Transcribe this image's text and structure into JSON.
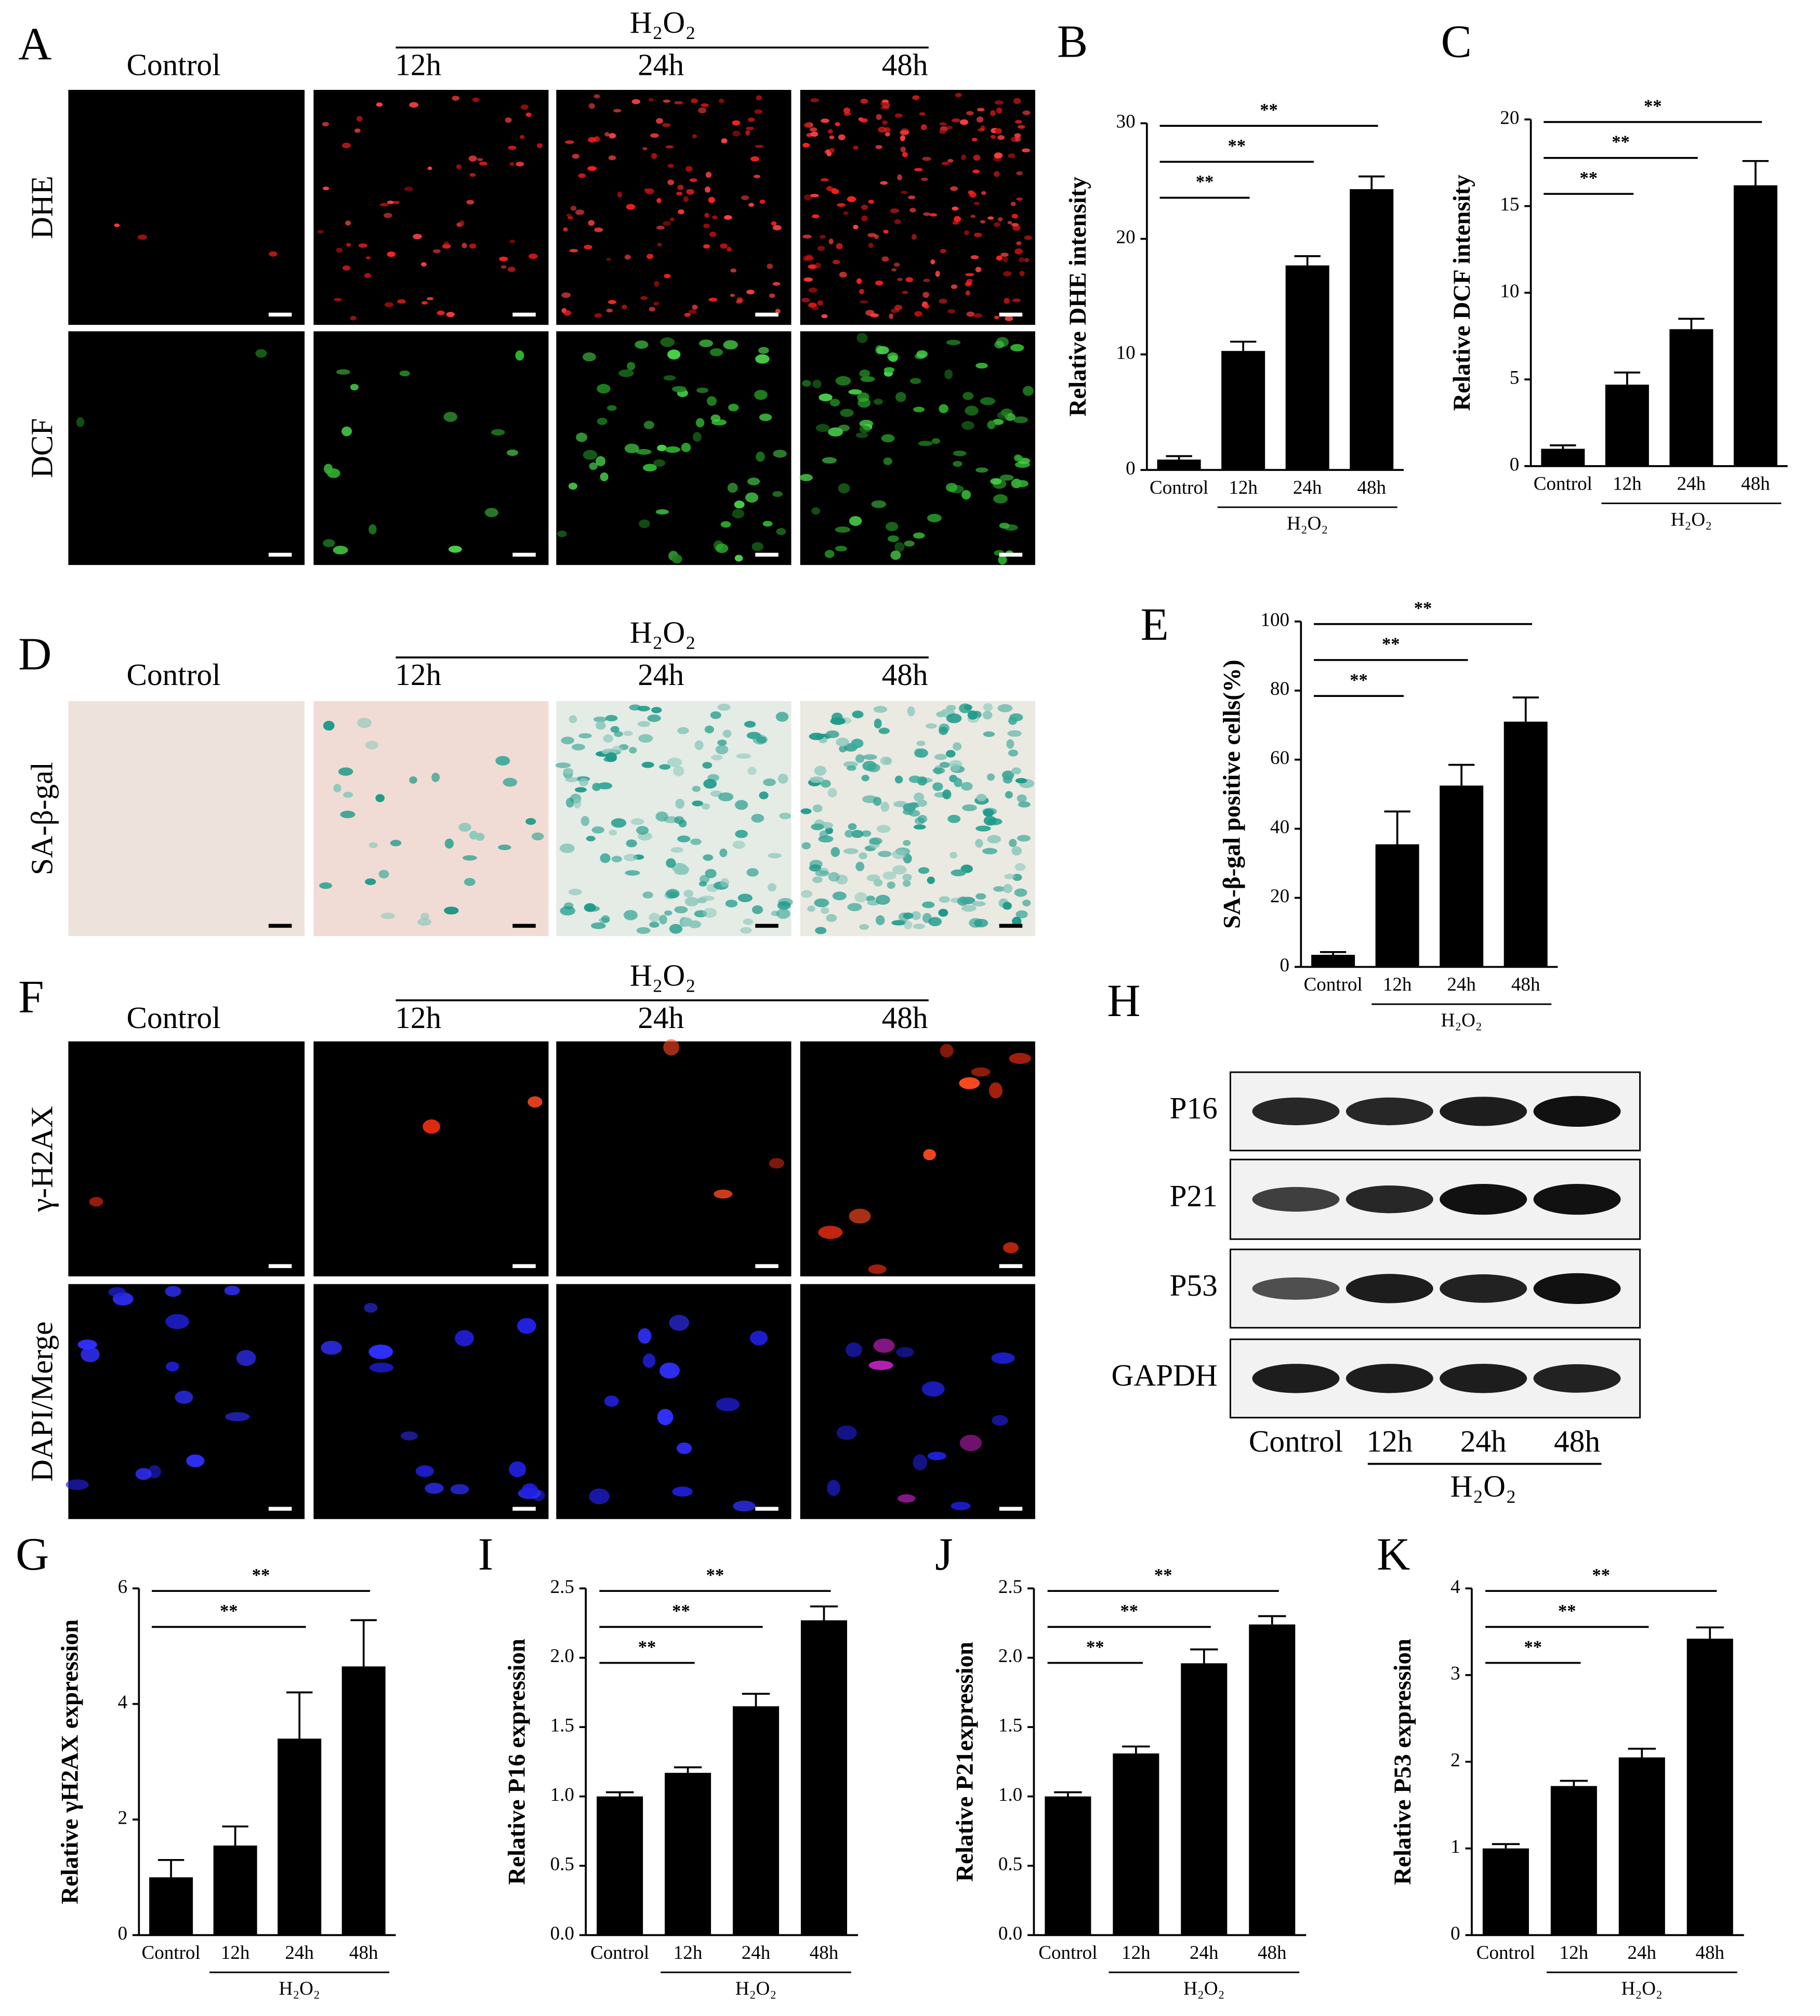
{
  "panels": {
    "A": {
      "letter": "A",
      "group": "H₂O₂",
      "columns": [
        "Control",
        "12h",
        "24h",
        "48h"
      ],
      "rows": [
        "DHE",
        "DCF"
      ]
    },
    "D": {
      "letter": "D",
      "group": "H₂O₂",
      "columns": [
        "Control",
        "12h",
        "24h",
        "48h"
      ],
      "rows": [
        "SA-β-gal"
      ]
    },
    "F": {
      "letter": "F",
      "group": "H₂O₂",
      "columns": [
        "Control",
        "12h",
        "24h",
        "48h"
      ],
      "rows": [
        "γ-H2AX",
        "DAPI/Merge"
      ]
    },
    "H": {
      "letter": "H",
      "group": "H₂O₂",
      "columns": [
        "Control",
        "12h",
        "24h",
        "48h"
      ],
      "rows": [
        "P16",
        "P21",
        "P53",
        "GAPDH"
      ]
    }
  },
  "chart_data": [
    {
      "panel": "B",
      "type": "bar",
      "ylabel": "Relative DHE intensity",
      "color": "#000000",
      "categories": [
        "Control",
        "12h",
        "24h",
        "48h"
      ],
      "group": {
        "label": "H₂O₂",
        "members": [
          "12h",
          "24h",
          "48h"
        ]
      },
      "values": [
        0.9,
        10.3,
        17.7,
        24.3
      ],
      "errors": [
        0.3,
        0.8,
        0.8,
        1.1
      ],
      "ylim": [
        0,
        30
      ],
      "yticks": [
        0,
        10,
        20,
        30
      ],
      "comparisons": [
        {
          "groups": [
            "Control",
            "12h"
          ],
          "label": "**"
        },
        {
          "groups": [
            "Control",
            "24h"
          ],
          "label": "**"
        },
        {
          "groups": [
            "Control",
            "48h"
          ],
          "label": "**"
        }
      ]
    },
    {
      "panel": "C",
      "type": "bar",
      "ylabel": "Relative DCF intensity",
      "color": "#000000",
      "categories": [
        "Control",
        "12h",
        "24h",
        "48h"
      ],
      "group": {
        "label": "H₂O₂",
        "members": [
          "12h",
          "24h",
          "48h"
        ]
      },
      "values": [
        1.0,
        4.7,
        7.9,
        16.2
      ],
      "errors": [
        0.2,
        0.7,
        0.6,
        1.4
      ],
      "ylim": [
        0,
        20
      ],
      "yticks": [
        0,
        5,
        10,
        15,
        20
      ],
      "comparisons": [
        {
          "groups": [
            "Control",
            "12h"
          ],
          "label": "**"
        },
        {
          "groups": [
            "Control",
            "24h"
          ],
          "label": "**"
        },
        {
          "groups": [
            "Control",
            "48h"
          ],
          "label": "**"
        }
      ]
    },
    {
      "panel": "E",
      "type": "bar",
      "ylabel": "SA-β-gal positive cells(%)",
      "color": "#000000",
      "categories": [
        "Control",
        "12h",
        "24h",
        "48h"
      ],
      "group": {
        "label": "H₂O₂",
        "members": [
          "12h",
          "24h",
          "48h"
        ]
      },
      "values": [
        3.5,
        35.5,
        52.5,
        71
      ],
      "errors": [
        0.8,
        9.5,
        6,
        7
      ],
      "ylim": [
        0,
        100
      ],
      "yticks": [
        0,
        20,
        40,
        60,
        80,
        100
      ],
      "comparisons": [
        {
          "groups": [
            "Control",
            "12h"
          ],
          "label": "**"
        },
        {
          "groups": [
            "Control",
            "24h"
          ],
          "label": "**"
        },
        {
          "groups": [
            "Control",
            "48h"
          ],
          "label": "**"
        }
      ]
    },
    {
      "panel": "G",
      "type": "bar",
      "ylabel": "Relative γH2AX expression",
      "color": "#000000",
      "categories": [
        "Control",
        "12h",
        "24h",
        "48h"
      ],
      "group": {
        "label": "H₂O₂",
        "members": [
          "12h",
          "24h",
          "48h"
        ]
      },
      "values": [
        1.0,
        1.55,
        3.4,
        4.65
      ],
      "errors": [
        0.3,
        0.33,
        0.8,
        0.8
      ],
      "ylim": [
        0,
        6
      ],
      "yticks": [
        0,
        2,
        4,
        6
      ],
      "comparisons": [
        {
          "groups": [
            "Control",
            "24h"
          ],
          "label": "**"
        },
        {
          "groups": [
            "Control",
            "48h"
          ],
          "label": "**"
        }
      ]
    },
    {
      "panel": "I",
      "type": "bar",
      "ylabel": "Relative P16 expression",
      "color": "#000000",
      "categories": [
        "Control",
        "12h",
        "24h",
        "48h"
      ],
      "group": {
        "label": "H₂O₂",
        "members": [
          "12h",
          "24h",
          "48h"
        ]
      },
      "values": [
        1.0,
        1.17,
        1.65,
        2.27
      ],
      "errors": [
        0.03,
        0.04,
        0.09,
        0.1
      ],
      "ylim": [
        0,
        2.5
      ],
      "yticks": [
        {
          "value": 0,
          "label": "0.0"
        },
        0.5,
        {
          "value": 1,
          "label": "1.0"
        },
        1.5,
        {
          "value": 2,
          "label": "2.0"
        },
        2.5
      ],
      "comparisons": [
        {
          "groups": [
            "Control",
            "12h"
          ],
          "label": "**"
        },
        {
          "groups": [
            "Control",
            "24h"
          ],
          "label": "**"
        },
        {
          "groups": [
            "Control",
            "48h"
          ],
          "label": "**"
        }
      ]
    },
    {
      "panel": "J",
      "type": "bar",
      "ylabel": "Relative P21expression",
      "color": "#000000",
      "categories": [
        "Control",
        "12h",
        "24h",
        "48h"
      ],
      "group": {
        "label": "H₂O₂",
        "members": [
          "12h",
          "24h",
          "48h"
        ]
      },
      "values": [
        1.0,
        1.31,
        1.96,
        2.24
      ],
      "errors": [
        0.03,
        0.05,
        0.1,
        0.06
      ],
      "ylim": [
        0,
        2.5
      ],
      "yticks": [
        {
          "value": 0,
          "label": "0.0"
        },
        0.5,
        {
          "value": 1,
          "label": "1.0"
        },
        1.5,
        {
          "value": 2,
          "label": "2.0"
        },
        2.5
      ],
      "comparisons": [
        {
          "groups": [
            "Control",
            "12h"
          ],
          "label": "**"
        },
        {
          "groups": [
            "Control",
            "24h"
          ],
          "label": "**"
        },
        {
          "groups": [
            "Control",
            "48h"
          ],
          "label": "**"
        }
      ]
    },
    {
      "panel": "K",
      "type": "bar",
      "ylabel": "Relative P53 expression",
      "color": "#000000",
      "categories": [
        "Control",
        "12h",
        "24h",
        "48h"
      ],
      "group": {
        "label": "H₂O₂",
        "members": [
          "12h",
          "24h",
          "48h"
        ]
      },
      "values": [
        1.0,
        1.72,
        2.05,
        3.42
      ],
      "errors": [
        0.05,
        0.06,
        0.1,
        0.13
      ],
      "ylim": [
        0,
        4
      ],
      "yticks": [
        0,
        1,
        2,
        3,
        4
      ],
      "comparisons": [
        {
          "groups": [
            "Control",
            "12h"
          ],
          "label": "**"
        },
        {
          "groups": [
            "Control",
            "24h"
          ],
          "label": "**"
        },
        {
          "groups": [
            "Control",
            "48h"
          ],
          "label": "**"
        }
      ]
    }
  ]
}
